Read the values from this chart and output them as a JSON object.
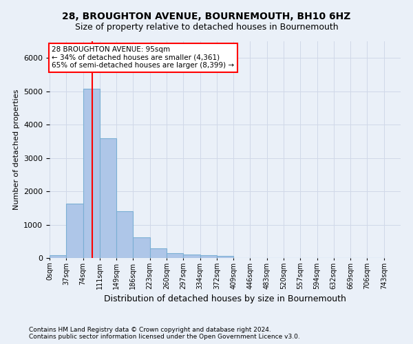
{
  "title1": "28, BROUGHTON AVENUE, BOURNEMOUTH, BH10 6HZ",
  "title2": "Size of property relative to detached houses in Bournemouth",
  "xlabel": "Distribution of detached houses by size in Bournemouth",
  "ylabel": "Number of detached properties",
  "footer1": "Contains HM Land Registry data © Crown copyright and database right 2024.",
  "footer2": "Contains public sector information licensed under the Open Government Licence v3.0.",
  "bin_labels": [
    "0sqm",
    "37sqm",
    "74sqm",
    "111sqm",
    "149sqm",
    "186sqm",
    "223sqm",
    "260sqm",
    "297sqm",
    "334sqm",
    "372sqm",
    "409sqm",
    "446sqm",
    "483sqm",
    "520sqm",
    "557sqm",
    "594sqm",
    "632sqm",
    "669sqm",
    "706sqm",
    "743sqm"
  ],
  "bar_values": [
    75,
    1640,
    5080,
    3600,
    1400,
    620,
    290,
    150,
    110,
    75,
    55,
    0,
    0,
    0,
    0,
    0,
    0,
    0,
    0,
    0
  ],
  "bar_color": "#aec6e8",
  "bar_edge_color": "#7aafd4",
  "vline_x": 95,
  "vline_color": "red",
  "annotation_title": "28 BROUGHTON AVENUE: 95sqm",
  "annotation_line1": "← 34% of detached houses are smaller (4,361)",
  "annotation_line2": "65% of semi-detached houses are larger (8,399) →",
  "annotation_box_color": "white",
  "annotation_box_edge_color": "red",
  "ylim": [
    0,
    6500
  ],
  "bin_width": 37,
  "grid_color": "#d0d8e8",
  "background_color": "#eaf0f8",
  "title1_fontsize": 10,
  "title2_fontsize": 9,
  "ylabel_fontsize": 8,
  "xlabel_fontsize": 9,
  "tick_fontsize": 7,
  "footer_fontsize": 6.5,
  "annot_fontsize": 7.5
}
